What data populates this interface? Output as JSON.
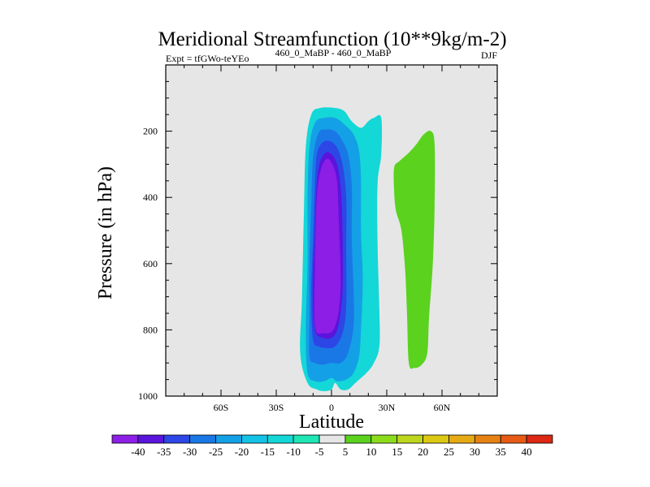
{
  "chart_data": {
    "type": "contour",
    "title": "Meridional Streamfunction (10**9kg/m-2)",
    "subtitle_left": "Expt = tfGWo-teYEo",
    "subtitle_center": "460_0_MaBP - 460_0_MaBP",
    "subtitle_right": "DJF",
    "xlabel": "Latitude",
    "ylabel": "Pressure (in hPa)",
    "xlim": [
      -90,
      90
    ],
    "ylim": [
      1000,
      0
    ],
    "x_ticks": [
      {
        "value": -60,
        "label": "60S"
      },
      {
        "value": -30,
        "label": "30S"
      },
      {
        "value": 0,
        "label": "0"
      },
      {
        "value": 30,
        "label": "30N"
      },
      {
        "value": 60,
        "label": "60N"
      }
    ],
    "y_ticks": [
      {
        "value": 200,
        "label": "200"
      },
      {
        "value": 400,
        "label": "400"
      },
      {
        "value": 600,
        "label": "600"
      },
      {
        "value": 800,
        "label": "800"
      },
      {
        "value": 1000,
        "label": "1000"
      }
    ],
    "plot_background": "#e6e6e6",
    "contour_levels": [
      -40,
      -35,
      -30,
      -25,
      -20,
      -15,
      -10,
      -5,
      5,
      10,
      15,
      20,
      25,
      30,
      35,
      40
    ],
    "colorbar_labels": [
      "-40",
      "-35",
      "-30",
      "-25",
      "-20",
      "-15",
      "-10",
      "-5",
      "5",
      "10",
      "15",
      "20",
      "25",
      "30",
      "35",
      "40"
    ],
    "colorbar_colors": [
      "#8c1ee6",
      "#5a14dc",
      "#2d46e6",
      "#1a78e6",
      "#14a0e6",
      "#14c3e6",
      "#14d7d7",
      "#1ee6b4",
      "#e6e6e6",
      "#5ad21e",
      "#8cdc1e",
      "#bed71e",
      "#dcc814",
      "#e6aa14",
      "#e68214",
      "#e65a14",
      "#dc2814"
    ],
    "regions": [
      {
        "name": "cyan-outer",
        "color": "#14d7d7",
        "level": "-10 to -5",
        "points": [
          [
            -13,
            960
          ],
          [
            -17,
            870
          ],
          [
            -16,
            700
          ],
          [
            -15,
            450
          ],
          [
            -14,
            250
          ],
          [
            -11,
            150
          ],
          [
            -6,
            130
          ],
          [
            2,
            130
          ],
          [
            7,
            140
          ],
          [
            11,
            170
          ],
          [
            16,
            190
          ],
          [
            20,
            170
          ],
          [
            23,
            160
          ],
          [
            27,
            160
          ],
          [
            27,
            270
          ],
          [
            25,
            360
          ],
          [
            25,
            540
          ],
          [
            26,
            740
          ],
          [
            26,
            850
          ],
          [
            23,
            900
          ],
          [
            19,
            930
          ],
          [
            13,
            960
          ],
          [
            9,
            980
          ],
          [
            5,
            980
          ],
          [
            2,
            960
          ],
          [
            0,
            980
          ],
          [
            -4,
            985
          ],
          [
            -8,
            980
          ]
        ]
      },
      {
        "name": "blue-20",
        "color": "#14a0e6",
        "level": "-20 to -15",
        "points": [
          [
            -13,
            930
          ],
          [
            -14,
            800
          ],
          [
            -13,
            600
          ],
          [
            -13,
            400
          ],
          [
            -12,
            250
          ],
          [
            -9,
            175
          ],
          [
            -4,
            160
          ],
          [
            2,
            160
          ],
          [
            7,
            180
          ],
          [
            12,
            210
          ],
          [
            15,
            260
          ],
          [
            16,
            350
          ],
          [
            16,
            500
          ],
          [
            17,
            650
          ],
          [
            16,
            800
          ],
          [
            15,
            880
          ],
          [
            12,
            930
          ],
          [
            8,
            950
          ],
          [
            3,
            955
          ],
          [
            0,
            945
          ],
          [
            -4,
            955
          ],
          [
            -9,
            955
          ]
        ]
      },
      {
        "name": "blue-25",
        "color": "#1a78e6",
        "level": "-25 to -20",
        "points": [
          [
            -12,
            880
          ],
          [
            -12,
            750
          ],
          [
            -12,
            600
          ],
          [
            -11,
            420
          ],
          [
            -10,
            280
          ],
          [
            -7,
            205
          ],
          [
            -3,
            195
          ],
          [
            2,
            200
          ],
          [
            6,
            230
          ],
          [
            9,
            270
          ],
          [
            11,
            360
          ],
          [
            11,
            520
          ],
          [
            12,
            680
          ],
          [
            12,
            790
          ],
          [
            9,
            870
          ],
          [
            5,
            900
          ],
          [
            0,
            900
          ],
          [
            -5,
            905
          ],
          [
            -9,
            900
          ]
        ]
      },
      {
        "name": "blue-30",
        "color": "#2d46e6",
        "level": "-30 to -25",
        "points": [
          [
            -10,
            830
          ],
          [
            -11,
            700
          ],
          [
            -10,
            520
          ],
          [
            -9,
            360
          ],
          [
            -8,
            270
          ],
          [
            -5,
            235
          ],
          [
            -1,
            230
          ],
          [
            3,
            250
          ],
          [
            6,
            300
          ],
          [
            8,
            400
          ],
          [
            8,
            560
          ],
          [
            8,
            730
          ],
          [
            6,
            810
          ],
          [
            2,
            850
          ],
          [
            -3,
            855
          ],
          [
            -7,
            850
          ]
        ]
      },
      {
        "name": "purple-35",
        "color": "#5a14dc",
        "level": "-35 to -30",
        "points": [
          [
            -9,
            800
          ],
          [
            -10,
            680
          ],
          [
            -9,
            500
          ],
          [
            -8,
            360
          ],
          [
            -6,
            290
          ],
          [
            -3,
            265
          ],
          [
            0,
            270
          ],
          [
            3,
            300
          ],
          [
            5,
            370
          ],
          [
            6,
            500
          ],
          [
            6,
            680
          ],
          [
            4,
            780
          ],
          [
            1,
            820
          ],
          [
            -4,
            825
          ]
        ]
      },
      {
        "name": "purple-40",
        "color": "#8c1ee6",
        "level": "< -35",
        "points": [
          [
            -9,
            790
          ],
          [
            -9,
            600
          ],
          [
            -8,
            400
          ],
          [
            -6,
            320
          ],
          [
            -3,
            285
          ],
          [
            0,
            295
          ],
          [
            3,
            350
          ],
          [
            4,
            480
          ],
          [
            5,
            640
          ],
          [
            4,
            740
          ],
          [
            1,
            800
          ],
          [
            -4,
            810
          ]
        ]
      },
      {
        "name": "green-pos",
        "color": "#5ad21e",
        "level": "5 to 10",
        "points": [
          [
            34,
            310
          ],
          [
            37,
            290
          ],
          [
            42,
            265
          ],
          [
            46,
            240
          ],
          [
            50,
            210
          ],
          [
            54,
            200
          ],
          [
            56,
            240
          ],
          [
            56,
            420
          ],
          [
            55,
            600
          ],
          [
            53,
            760
          ],
          [
            52,
            870
          ],
          [
            49,
            905
          ],
          [
            45,
            915
          ],
          [
            42,
            900
          ],
          [
            41,
            750
          ],
          [
            40,
            620
          ],
          [
            38,
            500
          ],
          [
            35,
            440
          ],
          [
            34,
            380
          ]
        ]
      }
    ]
  }
}
